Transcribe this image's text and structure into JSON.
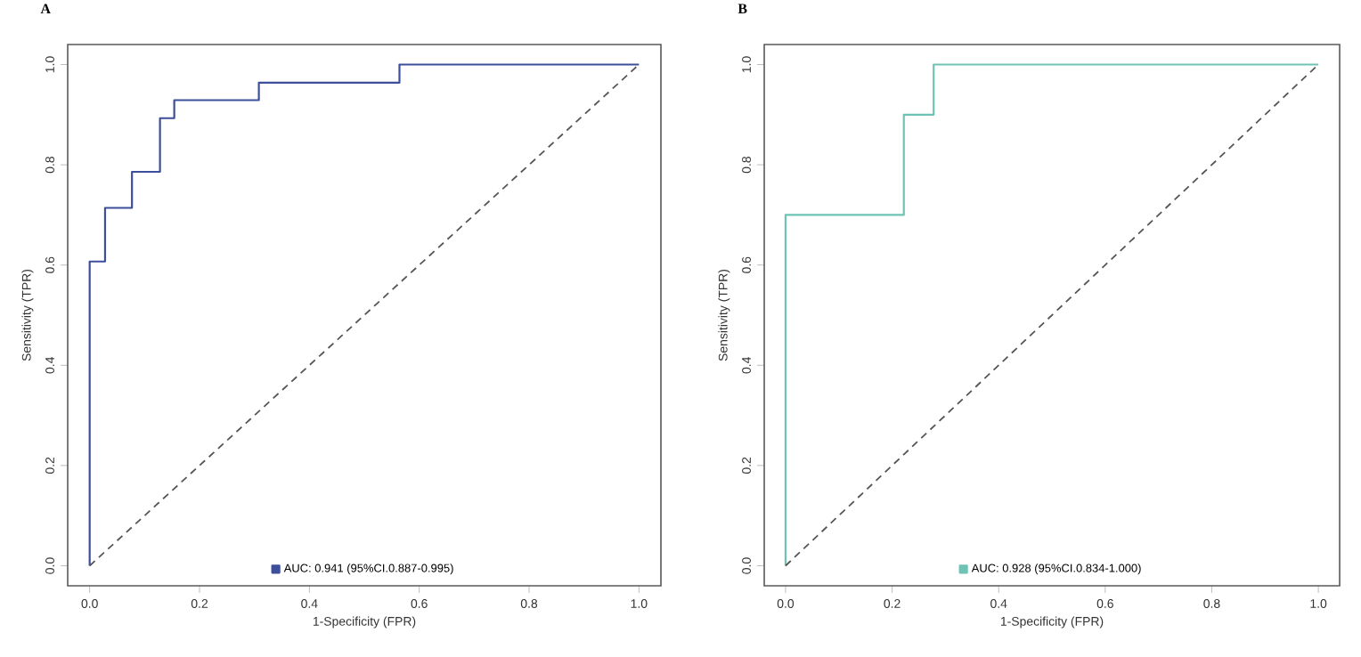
{
  "chart_data": [
    {
      "type": "step",
      "title": "A",
      "xlabel": "1-Specificity (FPR)",
      "ylabel": "Sensitivity (TPR)",
      "xlim": [
        -0.04,
        1.04
      ],
      "ylim": [
        -0.04,
        1.04
      ],
      "xticks": [
        {
          "value": 0,
          "label": "0.0"
        },
        {
          "value": 0.2,
          "label": "0.2"
        },
        {
          "value": 0.4,
          "label": "0.4"
        },
        {
          "value": 0.6,
          "label": "0.6"
        },
        {
          "value": 0.8,
          "label": "0.8"
        },
        {
          "value": 1,
          "label": "1.0"
        }
      ],
      "yticks": [
        {
          "value": 0,
          "label": "0.0"
        },
        {
          "value": 0.2,
          "label": "0.2"
        },
        {
          "value": 0.4,
          "label": "0.4"
        },
        {
          "value": 0.6,
          "label": "0.6"
        },
        {
          "value": 0.8,
          "label": "0.8"
        },
        {
          "value": 1,
          "label": "1.0"
        }
      ],
      "legend": "bottom",
      "grid": false,
      "marker": "none",
      "series": [
        {
          "name": "AUC: 0.941 (95%CI.0.887-0.995)",
          "type": "step",
          "color": "#3c4f9a",
          "line_style": "solid",
          "x": [
            0,
            0,
            0.028,
            0.077,
            0.128,
            0.154,
            0.308,
            0.564,
            1
          ],
          "values": [
            0,
            0.607,
            0.714,
            0.786,
            0.893,
            0.929,
            0.964,
            1,
            1
          ]
        },
        {
          "type": "line",
          "color": "#555555",
          "line_style": "dashed",
          "x": [
            0,
            1
          ],
          "values": [
            0,
            1
          ]
        }
      ]
    },
    {
      "type": "step",
      "title": "B",
      "xlabel": "1-Specificity (FPR)",
      "ylabel": "Sensitivity (TPR)",
      "xlim": [
        -0.04,
        1.04
      ],
      "ylim": [
        -0.04,
        1.04
      ],
      "xticks": [
        {
          "value": 0,
          "label": "0.0"
        },
        {
          "value": 0.2,
          "label": "0.2"
        },
        {
          "value": 0.4,
          "label": "0.4"
        },
        {
          "value": 0.6,
          "label": "0.6"
        },
        {
          "value": 0.8,
          "label": "0.8"
        },
        {
          "value": 1,
          "label": "1.0"
        }
      ],
      "yticks": [
        {
          "value": 0,
          "label": "0.0"
        },
        {
          "value": 0.2,
          "label": "0.2"
        },
        {
          "value": 0.4,
          "label": "0.4"
        },
        {
          "value": 0.6,
          "label": "0.6"
        },
        {
          "value": 0.8,
          "label": "0.8"
        },
        {
          "value": 1,
          "label": "1.0"
        }
      ],
      "legend": "bottom",
      "grid": false,
      "marker": "none",
      "series": [
        {
          "name": "AUC: 0.928 (95%CI.0.834-1.000)",
          "type": "step",
          "color": "#6ec3b4",
          "line_style": "solid",
          "x": [
            0,
            0,
            0.222,
            0.278,
            1
          ],
          "values": [
            0,
            0.7,
            0.9,
            1,
            1
          ]
        },
        {
          "type": "line",
          "color": "#555555",
          "line_style": "dashed",
          "x": [
            0,
            1
          ],
          "values": [
            0,
            1
          ]
        }
      ]
    }
  ]
}
